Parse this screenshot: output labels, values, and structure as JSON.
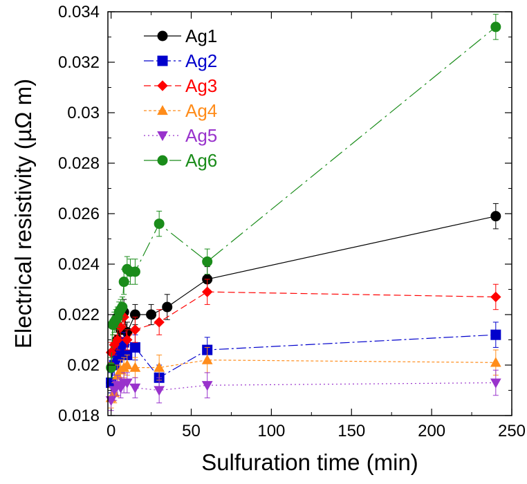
{
  "chart_data": {
    "type": "scatter",
    "xlabel": "Sulfuration time (min)",
    "ylabel": "Electrical resistivity (µΩ m)",
    "xlim": [
      -2,
      250
    ],
    "ylim": [
      0.018,
      0.034
    ],
    "x_ticks": [
      0,
      50,
      100,
      150,
      200,
      250
    ],
    "x_tick_labels": [
      "0",
      "50",
      "100",
      "150",
      "200",
      "250"
    ],
    "y_ticks": [
      0.018,
      0.02,
      0.022,
      0.024,
      0.026,
      0.028,
      0.03,
      0.032,
      0.034
    ],
    "y_tick_labels": [
      "0.018",
      "0.02",
      "0.022",
      "0.024",
      "0.026",
      "0.028",
      "0.03",
      "0.032",
      "0.034"
    ],
    "grid": false,
    "legend_position": "top-left",
    "series": [
      {
        "name": "Ag1",
        "color": "#000000",
        "marker": "circle",
        "dash": "none",
        "x": [
          0,
          2,
          4,
          6,
          8,
          10,
          15,
          25,
          35,
          60,
          240
        ],
        "y": [
          0.0193,
          0.0205,
          0.021,
          0.0214,
          0.0221,
          0.0213,
          0.022,
          0.022,
          0.0223,
          0.0234,
          0.0259
        ],
        "err": [
          0.0004,
          0.0004,
          0.0004,
          0.0004,
          0.0005,
          0.0004,
          0.0004,
          0.0004,
          0.0005,
          0.0005,
          0.0005
        ]
      },
      {
        "name": "Ag2",
        "color": "#0000cc",
        "marker": "square",
        "dash": "14 4 3 4",
        "x": [
          0,
          2,
          4,
          6,
          8,
          10,
          15,
          30,
          60,
          240
        ],
        "y": [
          0.0193,
          0.02,
          0.0203,
          0.0207,
          0.0209,
          0.0204,
          0.0207,
          0.0195,
          0.0206,
          0.0212
        ],
        "err": [
          0.0004,
          0.0004,
          0.0004,
          0.0004,
          0.0004,
          0.0004,
          0.0005,
          0.0005,
          0.0005,
          0.0005
        ]
      },
      {
        "name": "Ag3",
        "color": "#ff0000",
        "marker": "diamond",
        "dash": "10 5",
        "x": [
          0,
          2,
          4,
          6,
          8,
          10,
          15,
          30,
          60,
          240
        ],
        "y": [
          0.0205,
          0.0208,
          0.021,
          0.0215,
          0.0219,
          0.021,
          0.0214,
          0.0217,
          0.0229,
          0.0227
        ],
        "err": [
          0.0004,
          0.0004,
          0.0004,
          0.0004,
          0.0004,
          0.0004,
          0.0005,
          0.0005,
          0.0005,
          0.0005
        ]
      },
      {
        "name": "Ag4",
        "color": "#ff8c1a",
        "marker": "triangle-up",
        "dash": "4 3",
        "x": [
          0,
          2,
          4,
          6,
          8,
          10,
          15,
          30,
          60,
          240
        ],
        "y": [
          0.0187,
          0.0189,
          0.0196,
          0.0198,
          0.0199,
          0.02,
          0.0199,
          0.0199,
          0.0202,
          0.0201
        ],
        "err": [
          0.0004,
          0.0004,
          0.0004,
          0.0004,
          0.0004,
          0.0004,
          0.0004,
          0.0005,
          0.0005,
          0.0005
        ]
      },
      {
        "name": "Ag5",
        "color": "#9933cc",
        "marker": "triangle-down",
        "dash": "2 4",
        "x": [
          0,
          2,
          4,
          6,
          8,
          10,
          15,
          30,
          60,
          240
        ],
        "y": [
          0.0186,
          0.019,
          0.0192,
          0.0191,
          0.0193,
          0.0193,
          0.0191,
          0.019,
          0.0192,
          0.0193
        ],
        "err": [
          0.0004,
          0.0004,
          0.0004,
          0.0004,
          0.0004,
          0.0004,
          0.0004,
          0.0005,
          0.0005,
          0.0005
        ]
      },
      {
        "name": "Ag6",
        "color": "#1a8c1a",
        "marker": "circle",
        "dash": "22 6 3 6",
        "x": [
          0,
          1,
          2,
          3,
          4,
          5,
          6,
          7,
          8,
          10,
          12,
          15,
          30,
          60,
          240
        ],
        "y": [
          0.0199,
          0.0216,
          0.0217,
          0.0218,
          0.0219,
          0.0221,
          0.0222,
          0.0223,
          0.0233,
          0.0238,
          0.0237,
          0.0237,
          0.0256,
          0.0241,
          0.0334
        ],
        "err": [
          0.0004,
          0.0004,
          0.0004,
          0.0004,
          0.0004,
          0.0004,
          0.0004,
          0.0004,
          0.0005,
          0.0005,
          0.0005,
          0.0005,
          0.0005,
          0.0005,
          0.0005
        ]
      }
    ]
  }
}
